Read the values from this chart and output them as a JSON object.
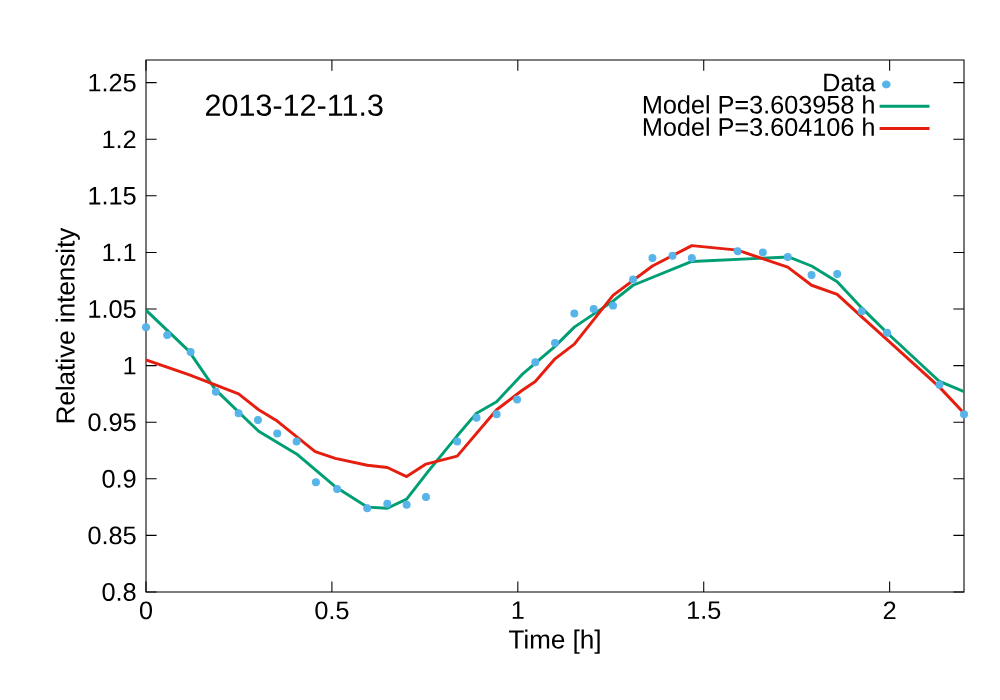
{
  "chart_data": {
    "type": "scatter",
    "xlabel": "Time [h]",
    "ylabel": "Relative intensity",
    "annotations": [
      "2013-12-11.3"
    ],
    "xlim": [
      0,
      2.2
    ],
    "ylim": [
      0.8,
      1.27
    ],
    "xticks": [
      0,
      0.5,
      1,
      1.5,
      2
    ],
    "yticks": [
      0.8,
      0.85,
      0.9,
      0.95,
      1,
      1.05,
      1.1,
      1.15,
      1.2,
      1.25
    ],
    "legend": "top right",
    "grid": false,
    "series": [
      {
        "name": "Data",
        "marker": "circle",
        "type": "scatter",
        "color": "#56b4e9",
        "x": [
          0.0,
          0.057,
          0.12,
          0.188,
          0.249,
          0.301,
          0.353,
          0.405,
          0.457,
          0.514,
          0.595,
          0.649,
          0.701,
          0.753,
          0.837,
          0.889,
          0.943,
          0.998,
          1.047,
          1.1,
          1.152,
          1.204,
          1.256,
          1.31,
          1.362,
          1.416,
          1.468,
          1.591,
          1.659,
          1.726,
          1.79,
          1.859,
          1.925,
          1.993,
          2.134,
          2.2
        ],
        "values": [
          1.034,
          1.027,
          1.012,
          0.977,
          0.958,
          0.952,
          0.94,
          0.933,
          0.897,
          0.891,
          0.874,
          0.878,
          0.877,
          0.884,
          0.933,
          0.954,
          0.957,
          0.97,
          1.003,
          1.02,
          1.046,
          1.05,
          1.053,
          1.076,
          1.095,
          1.097,
          1.095,
          1.101,
          1.1,
          1.096,
          1.08,
          1.081,
          1.048,
          1.029,
          0.983,
          0.957
        ]
      },
      {
        "name": "Model P=3.603958 h",
        "type": "line",
        "color": "#009e73",
        "x": [
          0.0,
          0.115,
          0.186,
          0.303,
          0.405,
          0.509,
          0.595,
          0.649,
          0.701,
          0.76,
          0.837,
          0.889,
          0.943,
          1.011,
          1.1,
          1.152,
          1.256,
          1.31,
          1.468,
          1.728,
          1.79,
          1.859,
          1.925,
          1.993,
          2.134,
          2.2
        ],
        "values": [
          1.049,
          1.013,
          0.979,
          0.942,
          0.922,
          0.893,
          0.875,
          0.874,
          0.882,
          0.907,
          0.938,
          0.958,
          0.968,
          0.992,
          1.017,
          1.034,
          1.057,
          1.071,
          1.092,
          1.096,
          1.088,
          1.074,
          1.051,
          1.029,
          0.986,
          0.977
        ]
      },
      {
        "name": "Model P=3.604106 h",
        "type": "line",
        "color": "#e51e10",
        "x": [
          0.0,
          0.115,
          0.249,
          0.303,
          0.353,
          0.455,
          0.509,
          0.595,
          0.649,
          0.701,
          0.753,
          0.837,
          0.943,
          1.011,
          1.047,
          1.1,
          1.152,
          1.256,
          1.362,
          1.468,
          1.591,
          1.726,
          1.79,
          1.859,
          1.925,
          1.993,
          2.134,
          2.2
        ],
        "values": [
          1.005,
          0.992,
          0.975,
          0.961,
          0.951,
          0.924,
          0.918,
          0.912,
          0.91,
          0.902,
          0.913,
          0.92,
          0.961,
          0.978,
          0.986,
          1.006,
          1.019,
          1.062,
          1.088,
          1.106,
          1.102,
          1.087,
          1.071,
          1.063,
          1.043,
          1.023,
          0.981,
          0.958
        ]
      }
    ]
  }
}
